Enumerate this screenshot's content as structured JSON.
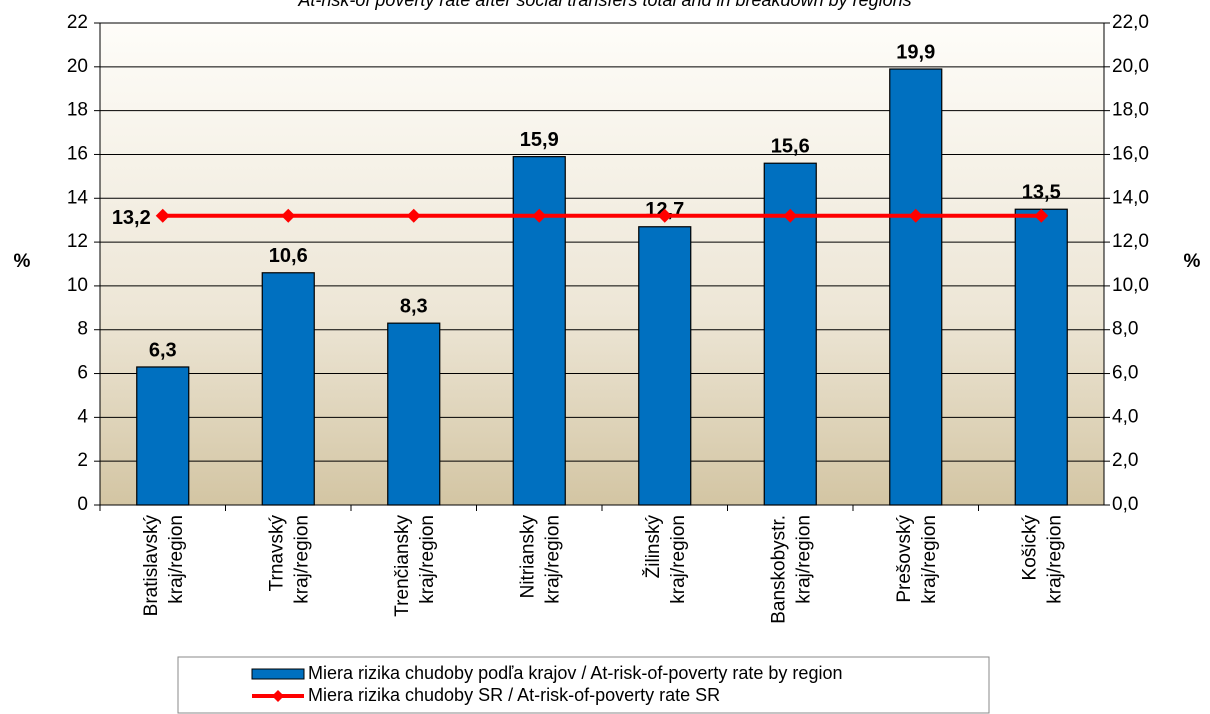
{
  "chart_data": {
    "type": "bar",
    "title": "At-risk-of poverty rate after social transfers total and in breakdown by regions",
    "ylabel": "%",
    "y2label": "%",
    "categories": [
      "Bratislavský kraj/region",
      "Trnavský kraj/region",
      "Trenčiansky kraj/region",
      "Nitriansky kraj/region",
      "Žilinský kraj/region",
      "Banskobystr. kraj/region",
      "Prešovský kraj/region",
      "Košický kraj/region"
    ],
    "series": [
      {
        "name": "Miera rizika chudoby podľa krajov / At-risk-of-poverty rate by region",
        "type": "bar",
        "color": "#0070c0",
        "values": [
          6.3,
          10.6,
          8.3,
          15.9,
          12.7,
          15.6,
          19.9,
          13.5
        ],
        "value_labels": [
          "6,3",
          "10,6",
          "8,3",
          "15,9",
          "12,7",
          "15,6",
          "19,9",
          "13,5"
        ]
      },
      {
        "name": "Miera rizika chudoby SR / At-risk-of-poverty rate SR",
        "type": "line",
        "axis": "y2",
        "color": "#ff0000",
        "values": [
          13.2,
          13.2,
          13.2,
          13.2,
          13.2,
          13.2,
          13.2,
          13.2
        ],
        "value_labels": [
          "13,2",
          null,
          null,
          null,
          null,
          null,
          null,
          null
        ]
      }
    ],
    "ylim": [
      0,
      22
    ],
    "yticks": [
      0,
      2,
      4,
      6,
      8,
      10,
      12,
      14,
      16,
      18,
      20,
      22
    ],
    "y2lim": [
      0,
      22
    ],
    "y2ticks": [
      {
        "value": 0,
        "label": "0,0"
      },
      {
        "value": 2,
        "label": "2,0"
      },
      {
        "value": 4,
        "label": "4,0"
      },
      {
        "value": 6,
        "label": "6,0"
      },
      {
        "value": 8,
        "label": "8,0"
      },
      {
        "value": 10,
        "label": "10,0"
      },
      {
        "value": 12,
        "label": "12,0"
      },
      {
        "value": 14,
        "label": "14,0"
      },
      {
        "value": 16,
        "label": "16,0"
      },
      {
        "value": 18,
        "label": "18,0"
      },
      {
        "value": 20,
        "label": "20,0"
      },
      {
        "value": 22,
        "label": "22,0"
      }
    ],
    "grid": true
  }
}
